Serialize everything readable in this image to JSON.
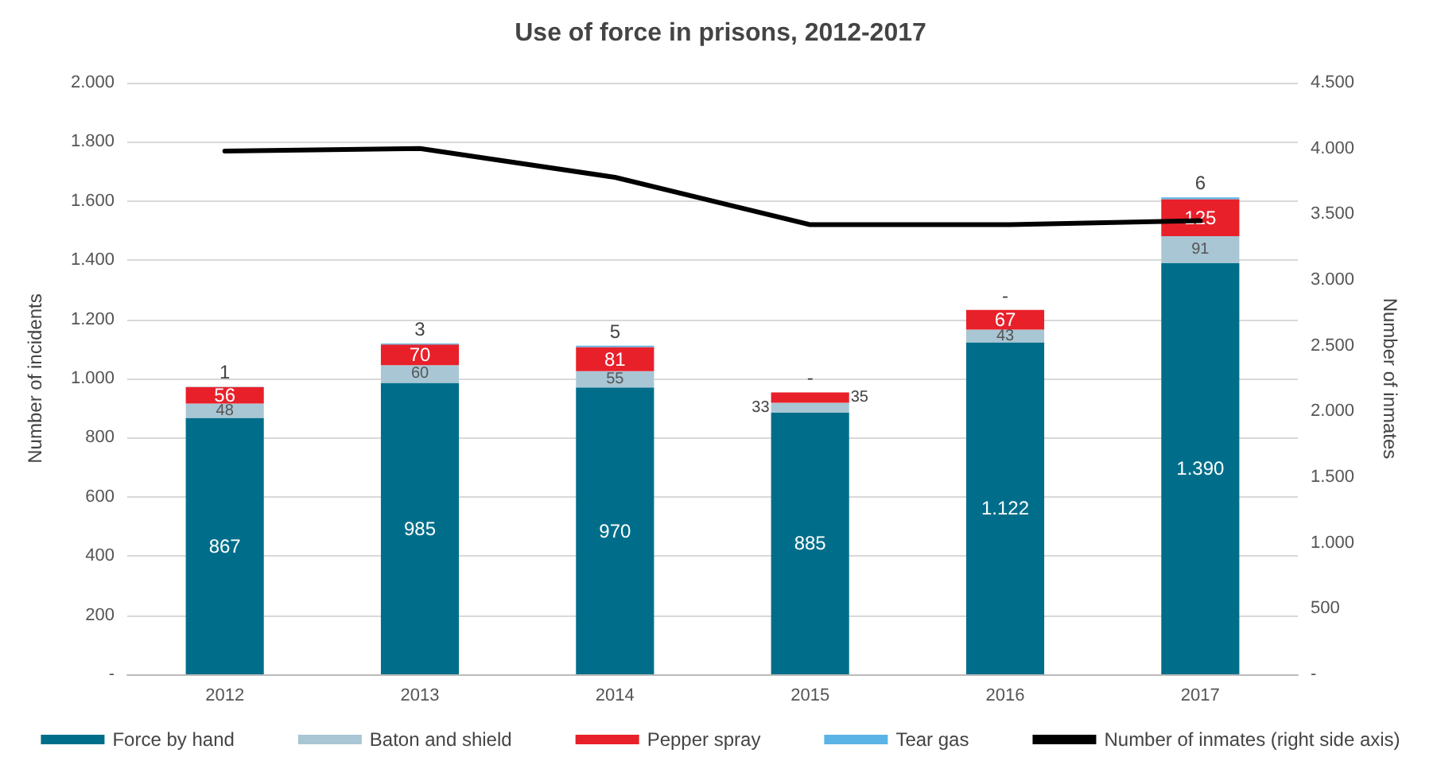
{
  "chart_data": {
    "type": "bar",
    "title": "Use of force in prisons, 2012-2017",
    "ylabel": "Number of incidents",
    "y2label": "Number of inmates",
    "categories": [
      "2012",
      "2013",
      "2014",
      "2015",
      "2016",
      "2017"
    ],
    "stacked": true,
    "series": [
      {
        "name": "Force by hand",
        "color": "#006e8a",
        "values": [
          867,
          985,
          970,
          885,
          1122,
          1390
        ],
        "value_labels": [
          "867",
          "985",
          "970",
          "885",
          "1.122",
          "1.390"
        ]
      },
      {
        "name": "Baton and shield",
        "color": "#a9c6d4",
        "values": [
          48,
          60,
          55,
          33,
          43,
          91
        ],
        "value_labels": [
          "48",
          "60",
          "55",
          "33",
          "43",
          "91"
        ]
      },
      {
        "name": "Pepper spray",
        "color": "#e8202a",
        "values": [
          56,
          70,
          81,
          35,
          67,
          125
        ],
        "value_labels": [
          "56",
          "70",
          "81",
          "35",
          "67",
          "125"
        ]
      },
      {
        "name": "Tear gas",
        "color": "#5ab4e5",
        "values": [
          1,
          3,
          5,
          0,
          0,
          6
        ],
        "value_labels": [
          "1",
          "3",
          "5",
          "-",
          "-",
          "6"
        ]
      },
      {
        "name": "Number of inmates (right side axis)",
        "type": "line",
        "axis": "y2",
        "color": "#000000",
        "values": [
          3980,
          4000,
          3780,
          3420,
          3420,
          3450
        ]
      }
    ],
    "ylim": [
      0,
      2000
    ],
    "yticks": [
      {
        "value": 0,
        "label": "-"
      },
      200,
      400,
      600,
      800,
      {
        "value": 1000,
        "label": "1.000"
      },
      {
        "value": 1200,
        "label": "1.200"
      },
      {
        "value": 1400,
        "label": "1.400"
      },
      {
        "value": 1600,
        "label": "1.600"
      },
      {
        "value": 1800,
        "label": "1.800"
      },
      {
        "value": 2000,
        "label": "2.000"
      }
    ],
    "y2lim": [
      0,
      4500
    ],
    "y2ticks": [
      {
        "value": 0,
        "label": "-"
      },
      500,
      {
        "value": 1000,
        "label": "1.000"
      },
      {
        "value": 1500,
        "label": "1.500"
      },
      {
        "value": 2000,
        "label": "2.000"
      },
      {
        "value": 2500,
        "label": "2.500"
      },
      {
        "value": 3000,
        "label": "3.000"
      },
      {
        "value": 3500,
        "label": "3.500"
      },
      {
        "value": 4000,
        "label": "4.000"
      },
      {
        "value": 4500,
        "label": "4.500"
      }
    ],
    "grid": "y",
    "legend": "bottom",
    "marker": "none",
    "line_style": "solid"
  }
}
